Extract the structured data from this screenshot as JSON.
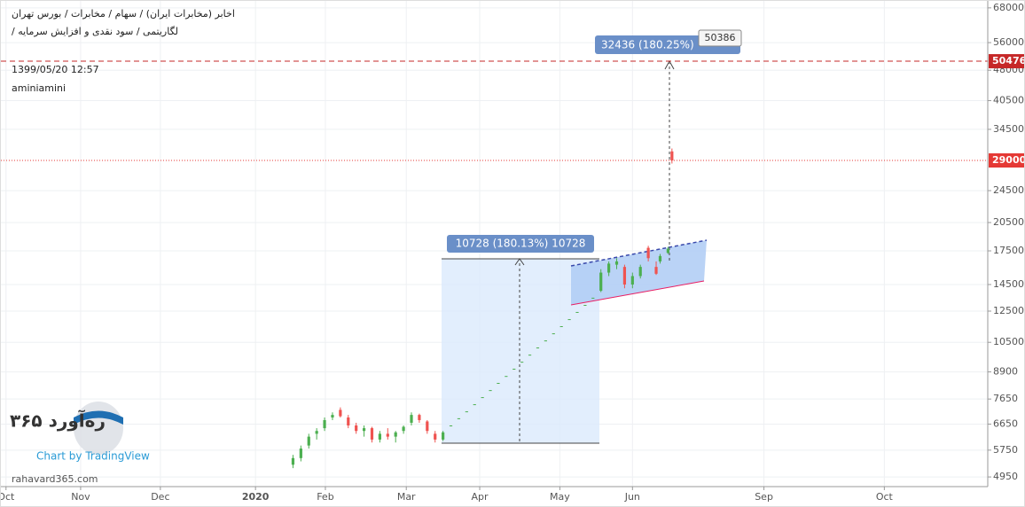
{
  "chart_data": {
    "type": "candlestick",
    "title": "اخابر (مخابرات ایران) / سهام / مخابرات / بورس تهران",
    "subtitle": "لگاریتمی / سود نقدی و افزایش سرمایه /",
    "timestamp": "1399/05/20 12:57",
    "author": "aminiamini",
    "watermark": {
      "brand": "ره‌آورد ۳۶۵",
      "site": "rahavard365.com",
      "credit": "Chart by TradingView"
    },
    "log_scale": true,
    "grid": true,
    "up_color": "#4caf50",
    "down_color": "#ef5350",
    "xlim": [
      0,
      250
    ],
    "xticks": [
      {
        "value": 1.3,
        "label": "Oct"
      },
      {
        "value": 20.2,
        "label": "Nov"
      },
      {
        "value": 40.4,
        "label": "Dec"
      },
      {
        "value": 64.5,
        "label": "2020"
      },
      {
        "value": 82.2,
        "label": "Feb"
      },
      {
        "value": 102.7,
        "label": "Mar"
      },
      {
        "value": 121.3,
        "label": "Apr"
      },
      {
        "value": 141.6,
        "label": "May"
      },
      {
        "value": 160,
        "label": "Jun"
      },
      {
        "value": 193.3,
        "label": "Sep"
      },
      {
        "value": 223.8,
        "label": "Oct"
      }
    ],
    "ylim": [
      4690,
      70700
    ],
    "yticks": [
      68000,
      56000,
      48000,
      40500,
      34500,
      24500,
      20500,
      17500,
      14500,
      12500,
      10500,
      8900,
      7650,
      6650,
      5750,
      4950
    ],
    "candles": {
      "x": [
        74,
        76,
        78,
        80,
        82,
        84,
        86,
        88,
        90,
        92,
        94,
        96,
        98,
        100,
        102,
        104,
        106,
        108,
        110,
        112,
        114,
        116,
        118,
        120,
        122,
        124,
        126,
        128,
        130,
        132,
        134,
        136,
        138,
        140,
        142,
        144,
        146,
        148,
        150,
        152,
        154,
        156,
        158,
        160,
        162,
        164,
        166,
        167,
        169,
        170
      ],
      "open": [
        5300,
        5500,
        5900,
        6300,
        6500,
        6900,
        7200,
        6900,
        6600,
        6400,
        6500,
        6100,
        6300,
        6200,
        6400,
        6700,
        7000,
        6750,
        6300,
        6100,
        6600,
        6870,
        7140,
        7430,
        7730,
        8040,
        8370,
        8700,
        9060,
        9420,
        9800,
        10200,
        10610,
        11040,
        11490,
        11950,
        12440,
        12940,
        13470,
        14000,
        15500,
        16200,
        16000,
        14500,
        15200,
        17800,
        16000,
        16500,
        17300,
        30500
      ],
      "high": [
        5600,
        5900,
        6300,
        6500,
        6900,
        7100,
        7300,
        7000,
        6700,
        6600,
        6550,
        6400,
        6500,
        6400,
        6600,
        7100,
        7050,
        6800,
        6400,
        6400,
        6600,
        6870,
        7140,
        7430,
        7730,
        8040,
        8370,
        8700,
        9060,
        9420,
        9800,
        10200,
        10610,
        11040,
        11490,
        11950,
        12440,
        12940,
        13470,
        15800,
        16500,
        16800,
        16200,
        15500,
        16200,
        18000,
        16500,
        17200,
        17900,
        31000
      ],
      "low": [
        5200,
        5400,
        5800,
        6100,
        6400,
        6800,
        6900,
        6500,
        6300,
        6200,
        6000,
        6000,
        6100,
        6000,
        6300,
        6600,
        6700,
        6300,
        6000,
        6050,
        6600,
        6870,
        7140,
        7430,
        7730,
        8040,
        8370,
        8700,
        9060,
        9420,
        9800,
        10200,
        10610,
        11040,
        11490,
        11950,
        12440,
        12940,
        13470,
        13900,
        15200,
        15800,
        14200,
        14200,
        15000,
        16500,
        15300,
        16300,
        17200,
        28500
      ],
      "close": [
        5500,
        5800,
        6200,
        6400,
        6800,
        7000,
        6950,
        6600,
        6400,
        6500,
        6100,
        6300,
        6200,
        6350,
        6550,
        7000,
        6800,
        6400,
        6100,
        6350,
        6600,
        6870,
        7140,
        7430,
        7730,
        8040,
        8370,
        8700,
        9060,
        9420,
        9800,
        10200,
        10610,
        11040,
        11490,
        11950,
        12440,
        12940,
        13470,
        15500,
        16300,
        16500,
        14500,
        15200,
        16000,
        16800,
        15400,
        17000,
        17700,
        29000
      ]
    },
    "price_lines": [
      {
        "value": 50476,
        "color": "#c62828",
        "dash": "6 4"
      },
      {
        "value": 29000,
        "color": "#e53935",
        "dash": "1 2"
      }
    ],
    "annotations": [
      "10728 (180.13%) 10728",
      "32436 (180.25%)",
      "50386"
    ]
  }
}
